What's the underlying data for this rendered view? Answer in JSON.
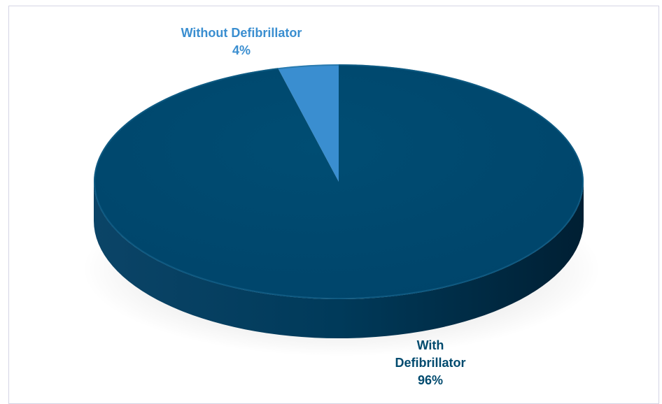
{
  "colors": {
    "with_top": "#004a6e",
    "with_side": "#003552",
    "without_top": "#3a8ed0",
    "without_label": "#3a8ed0",
    "with_label": "#004a6e"
  },
  "chart_data": {
    "type": "pie",
    "style": "3d",
    "categories": [
      "Without Defibrillator",
      "With Defibrillator"
    ],
    "values": [
      4,
      96
    ],
    "data_labels": [
      {
        "name_lines": [
          "Without Defibrillator"
        ],
        "percent": "4%"
      },
      {
        "name_lines": [
          "With",
          "Defibrillator"
        ],
        "percent": "96%"
      }
    ]
  }
}
